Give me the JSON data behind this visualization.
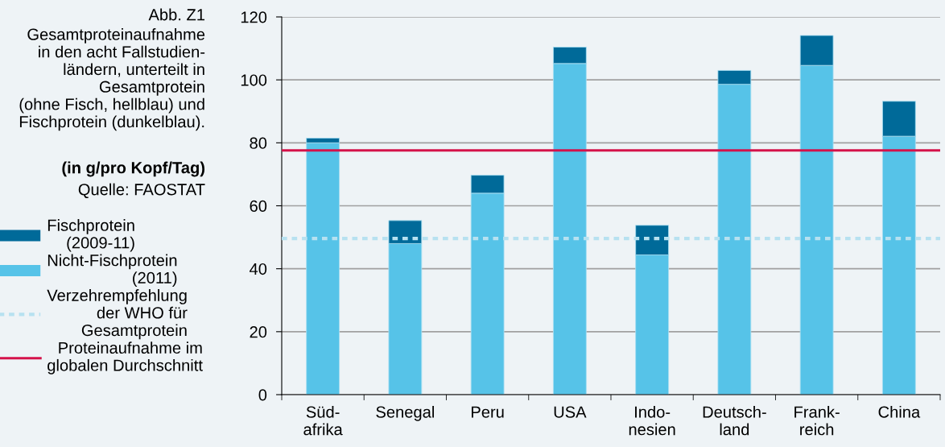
{
  "chart_data": {
    "type": "bar",
    "stacked": true,
    "title": "Abb. Z1",
    "subtitle": "Gesamtproteinaufnahme\nin den acht Fallstudien-\nländern, unterteilt in\nGesamtprotein\n(ohne Fisch, hellblau) und\nFischprotein (dunkelblau).",
    "ylabel": "(in g/pro Kopf/Tag)",
    "annotations": [
      "Quelle: FAOSTAT"
    ],
    "categories": [
      "Süd-\nafrika",
      "Senegal",
      "Peru",
      "USA",
      "Indo-\nnesien",
      "Deutsch-\nland",
      "Frank-\nreich",
      "China"
    ],
    "series": [
      {
        "name": "Nicht-Fischprotein\n(2011)",
        "color": "#56c3e8",
        "values": [
          80.0,
          48.0,
          64.0,
          105.2,
          44.4,
          98.6,
          104.6,
          82.1
        ]
      },
      {
        "name": "Fischprotein\n(2009-11)",
        "color": "#006a99",
        "values": [
          1.5,
          7.3,
          5.7,
          5.2,
          9.4,
          4.4,
          9.5,
          11.1
        ]
      }
    ],
    "ref_lines": [
      {
        "axis": "y",
        "value": 49.6,
        "label": "Verzehrempfehlung\nder WHO für\nGesamtprotein",
        "color": "#b7e1f0",
        "line_style": "dotted"
      },
      {
        "axis": "y",
        "value": 77.6,
        "label": "Proteinaufnahme im\nglobalen Durchschnitt",
        "color": "#d4124a",
        "line_style": "solid"
      }
    ],
    "ylim": [
      0,
      120
    ],
    "yticks": [
      0,
      20,
      40,
      60,
      80,
      100,
      120
    ],
    "grid": "y",
    "legend": "left"
  }
}
